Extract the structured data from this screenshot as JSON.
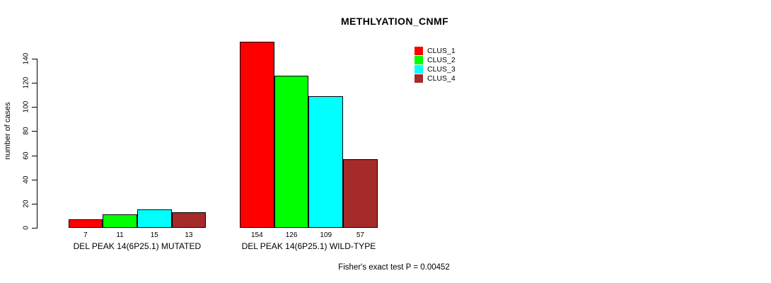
{
  "chart_data": {
    "type": "bar",
    "title": "METHLYATION_CNMF",
    "ylabel": "number of cases",
    "xlabel": "",
    "categories": [
      "DEL PEAK 14(6P25.1) MUTATED",
      "DEL PEAK 14(6P25.1) WILD-TYPE"
    ],
    "series": [
      {
        "name": "CLUS_1",
        "color": "#FF0000",
        "values": [
          7,
          154
        ]
      },
      {
        "name": "CLUS_2",
        "color": "#00FF00",
        "values": [
          11,
          126
        ]
      },
      {
        "name": "CLUS_3",
        "color": "#00FFFF",
        "values": [
          15,
          109
        ]
      },
      {
        "name": "CLUS_4",
        "color": "#A52A2A",
        "values": [
          13,
          57
        ]
      }
    ],
    "yticks": [
      0,
      20,
      40,
      60,
      80,
      100,
      120,
      140
    ],
    "ylim": [
      0,
      154
    ],
    "grid": false,
    "bar_value_labels_shown": true,
    "legend_position": "top-right",
    "annotation": "Fisher's exact test P = 0.00452",
    "axis_color": "#000000",
    "text_color": "#000000",
    "background_color": "#FFFFFF"
  }
}
